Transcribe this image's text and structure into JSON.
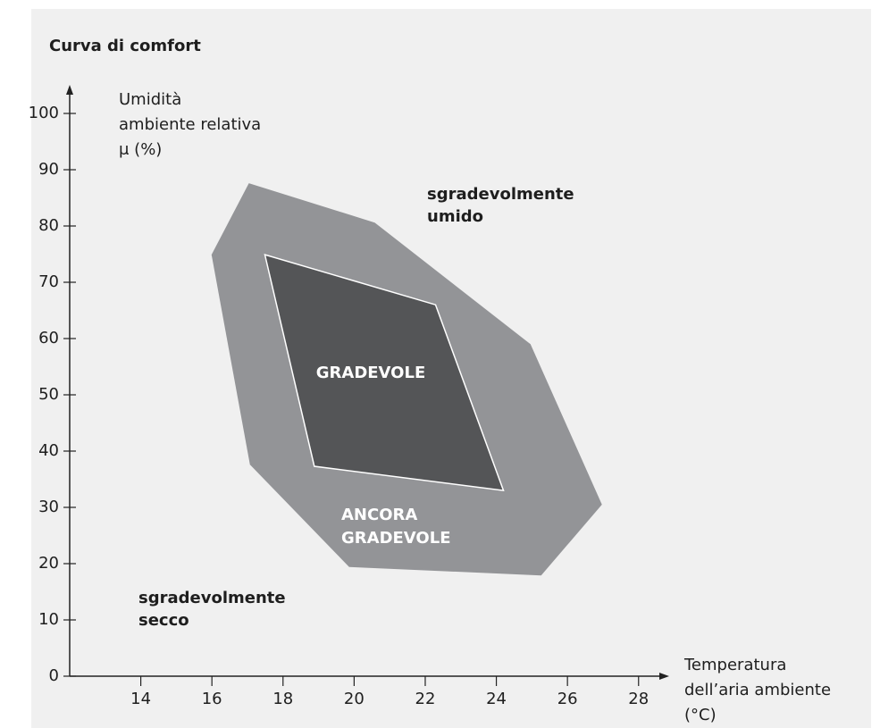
{
  "chart_data": {
    "type": "polygon",
    "title": "Curva di comfort",
    "y_label": [
      "Umidità",
      "ambiente relativa",
      "μ (%)"
    ],
    "x_label": [
      "Temperatura",
      "dell’aria ambiente",
      "(°C)"
    ],
    "xlim": [
      12,
      28.76
    ],
    "ylim": [
      0,
      105
    ],
    "xticks": [
      14,
      16,
      18,
      20,
      22,
      24,
      26,
      28
    ],
    "yticks": [
      0,
      10,
      20,
      30,
      40,
      50,
      60,
      70,
      80,
      90,
      100
    ],
    "grid": false,
    "series": [
      {
        "name": [
          "ANCORA",
          "GRADEVOLE"
        ],
        "color": "#939497",
        "x": [
          17.04,
          20.58,
          24.96,
          26.97,
          25.26,
          19.86,
          17.07,
          15.99
        ],
        "y": [
          87.6,
          80.6,
          59.0,
          30.5,
          17.9,
          19.4,
          37.6,
          74.9
        ]
      },
      {
        "name": [
          "GRADEVOLE"
        ],
        "color": "#545557",
        "edgecolor": "#ffffff",
        "x": [
          17.49,
          22.29,
          24.2,
          18.88
        ],
        "y": [
          74.9,
          66.0,
          33.0,
          37.3
        ]
      }
    ],
    "annotations": [
      [
        "sgradevolmente",
        "umido"
      ],
      [
        "sgradevolmente",
        "secco"
      ]
    ]
  }
}
